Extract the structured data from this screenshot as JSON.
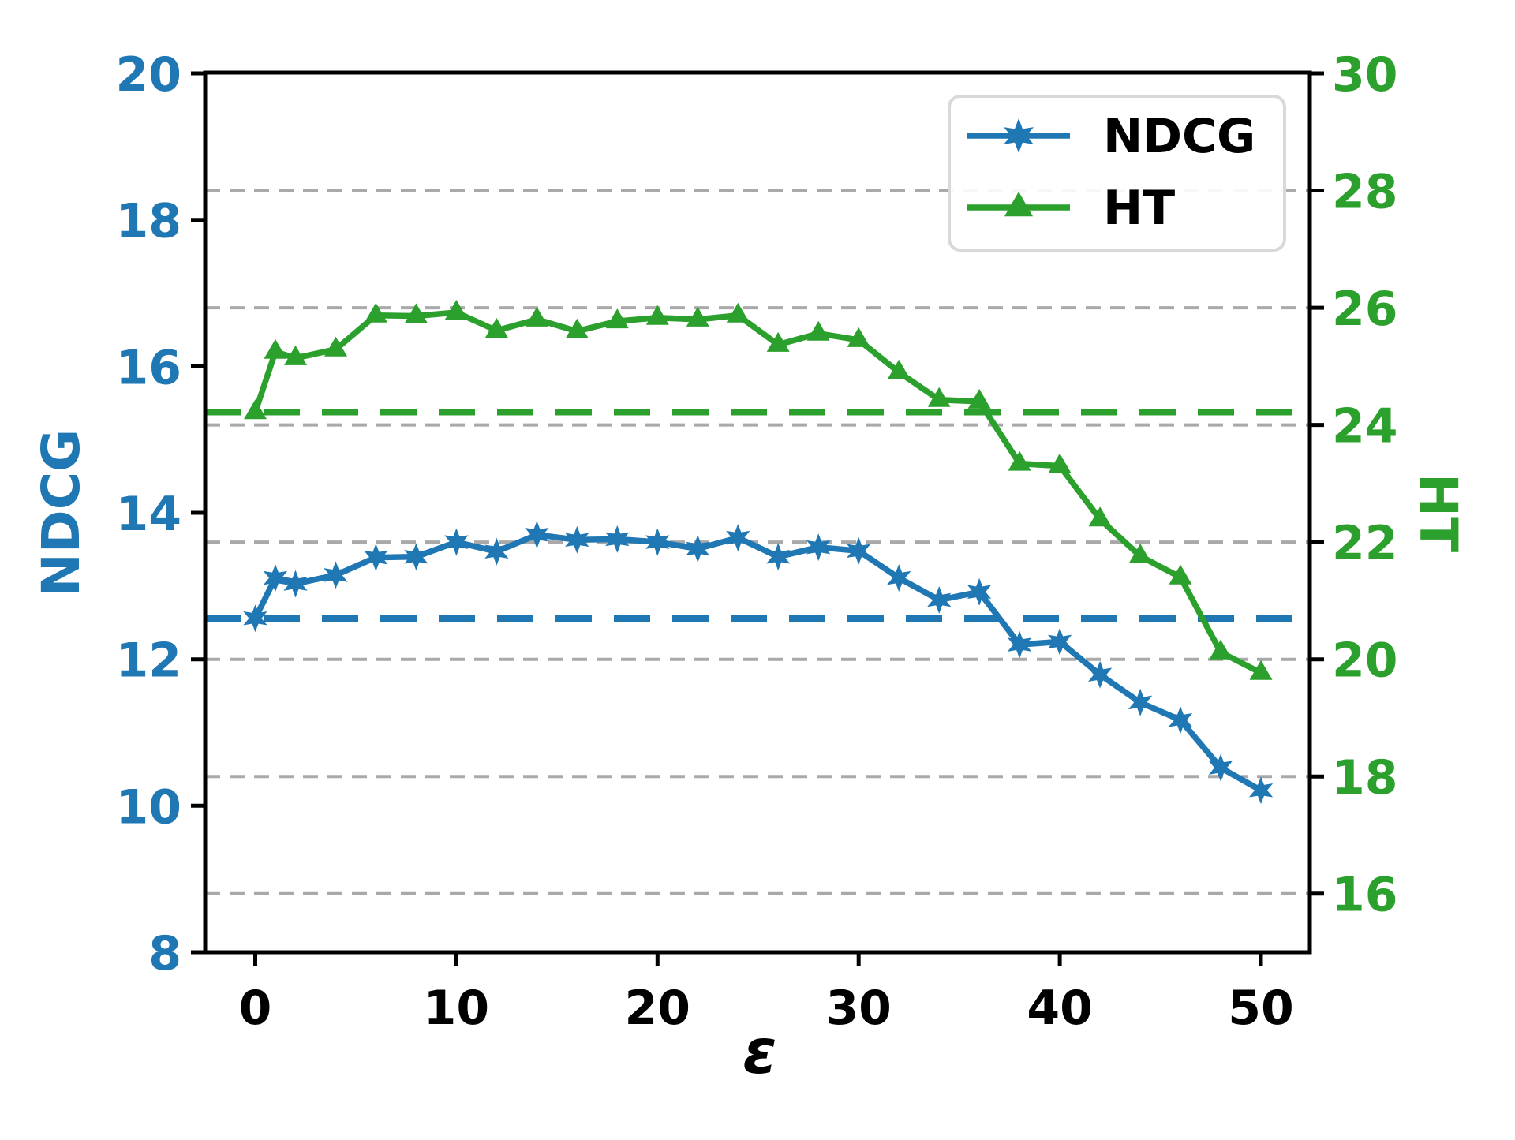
{
  "chart_data": {
    "type": "line",
    "title": "",
    "xlabel": "ε",
    "x_ticks": [
      0,
      10,
      20,
      30,
      40,
      50
    ],
    "xlim": [
      -2.5,
      52.4
    ],
    "grid": {
      "axis": "right",
      "values": [
        16,
        18,
        20,
        22,
        24,
        26,
        28
      ],
      "color": "#a9a9a9",
      "style": "dashed"
    },
    "left_axis": {
      "label": "NDCG",
      "color": "#1f77b4",
      "range": [
        8,
        20
      ],
      "ticks": [
        8,
        10,
        12,
        14,
        16,
        18,
        20
      ]
    },
    "right_axis": {
      "label": "HT",
      "color": "#2ca02c",
      "range": [
        15,
        30
      ],
      "ticks": [
        16,
        18,
        20,
        22,
        24,
        26,
        28,
        30
      ]
    },
    "x": [
      0,
      1,
      2,
      4,
      6,
      8,
      10,
      12,
      14,
      16,
      18,
      20,
      22,
      24,
      26,
      28,
      30,
      32,
      34,
      36,
      38,
      40,
      42,
      44,
      46,
      48,
      50
    ],
    "series": [
      {
        "name": "NDCG",
        "axis": "left",
        "color": "#1f77b4",
        "marker": "star",
        "values": [
          12.56,
          13.11,
          13.03,
          13.15,
          13.39,
          13.4,
          13.6,
          13.47,
          13.7,
          13.63,
          13.64,
          13.6,
          13.51,
          13.66,
          13.4,
          13.53,
          13.48,
          13.11,
          12.81,
          12.92,
          12.2,
          12.24,
          11.79,
          11.41,
          11.17,
          10.52,
          10.21
        ]
      },
      {
        "name": "HT",
        "axis": "right",
        "color": "#2ca02c",
        "marker": "triangle",
        "values": [
          24.22,
          25.25,
          25.14,
          25.29,
          25.87,
          25.86,
          25.92,
          25.61,
          25.8,
          25.6,
          25.77,
          25.83,
          25.8,
          25.87,
          25.37,
          25.56,
          25.45,
          24.9,
          24.43,
          24.4,
          23.34,
          23.3,
          22.39,
          21.76,
          21.4,
          20.12,
          19.77
        ]
      }
    ],
    "baselines": [
      {
        "name": "NDCG baseline",
        "axis": "left",
        "color": "#1f77b4",
        "value": 12.56
      },
      {
        "name": "HT baseline",
        "axis": "right",
        "color": "#2ca02c",
        "value": 24.22
      }
    ],
    "legend": {
      "position": "upper right",
      "entries": [
        {
          "label": "NDCG",
          "series": 0
        },
        {
          "label": "HT",
          "series": 1
        }
      ]
    }
  }
}
